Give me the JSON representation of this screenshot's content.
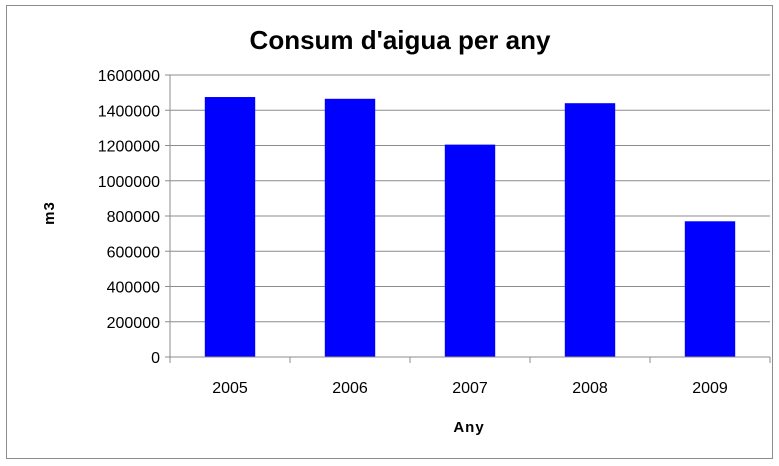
{
  "chart_data": {
    "type": "bar",
    "title": "Consum d'aigua per any",
    "xlabel": "Any",
    "ylabel": "m3",
    "categories": [
      "2005",
      "2006",
      "2007",
      "2008",
      "2009"
    ],
    "values": [
      1475000,
      1465000,
      1205000,
      1440000,
      770000
    ],
    "ylim": [
      0,
      1600000
    ],
    "yticks": [
      0,
      200000,
      400000,
      600000,
      800000,
      1000000,
      1200000,
      1400000,
      1600000
    ],
    "grid": true,
    "legend": "none",
    "colors": {
      "bar": "#0000ff",
      "grid": "#8c8c8c",
      "axis": "#8c8c8c",
      "frame": "#8c8c8c"
    }
  }
}
